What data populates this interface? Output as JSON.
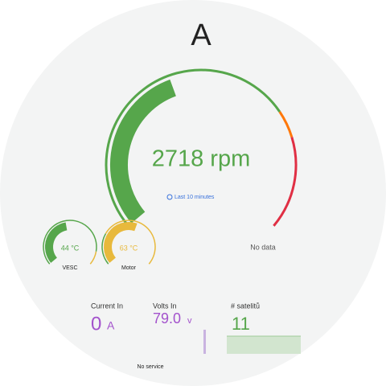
{
  "header": {
    "title": "A"
  },
  "main_gauge": {
    "value": "2718 rpm",
    "time_range": "Last 10 minutes"
  },
  "small_gauges": [
    {
      "value": "44 °C",
      "label": "VESC"
    },
    {
      "value": "63 °C",
      "label": "Motor"
    }
  ],
  "empty_panel": "No data",
  "stats": [
    {
      "label": "Current In",
      "value": "0",
      "unit": "A"
    },
    {
      "label": "Volts In",
      "value": "79.0",
      "unit": "v"
    },
    {
      "label": "# satelitů",
      "value": "11"
    }
  ],
  "footer": "No service"
}
